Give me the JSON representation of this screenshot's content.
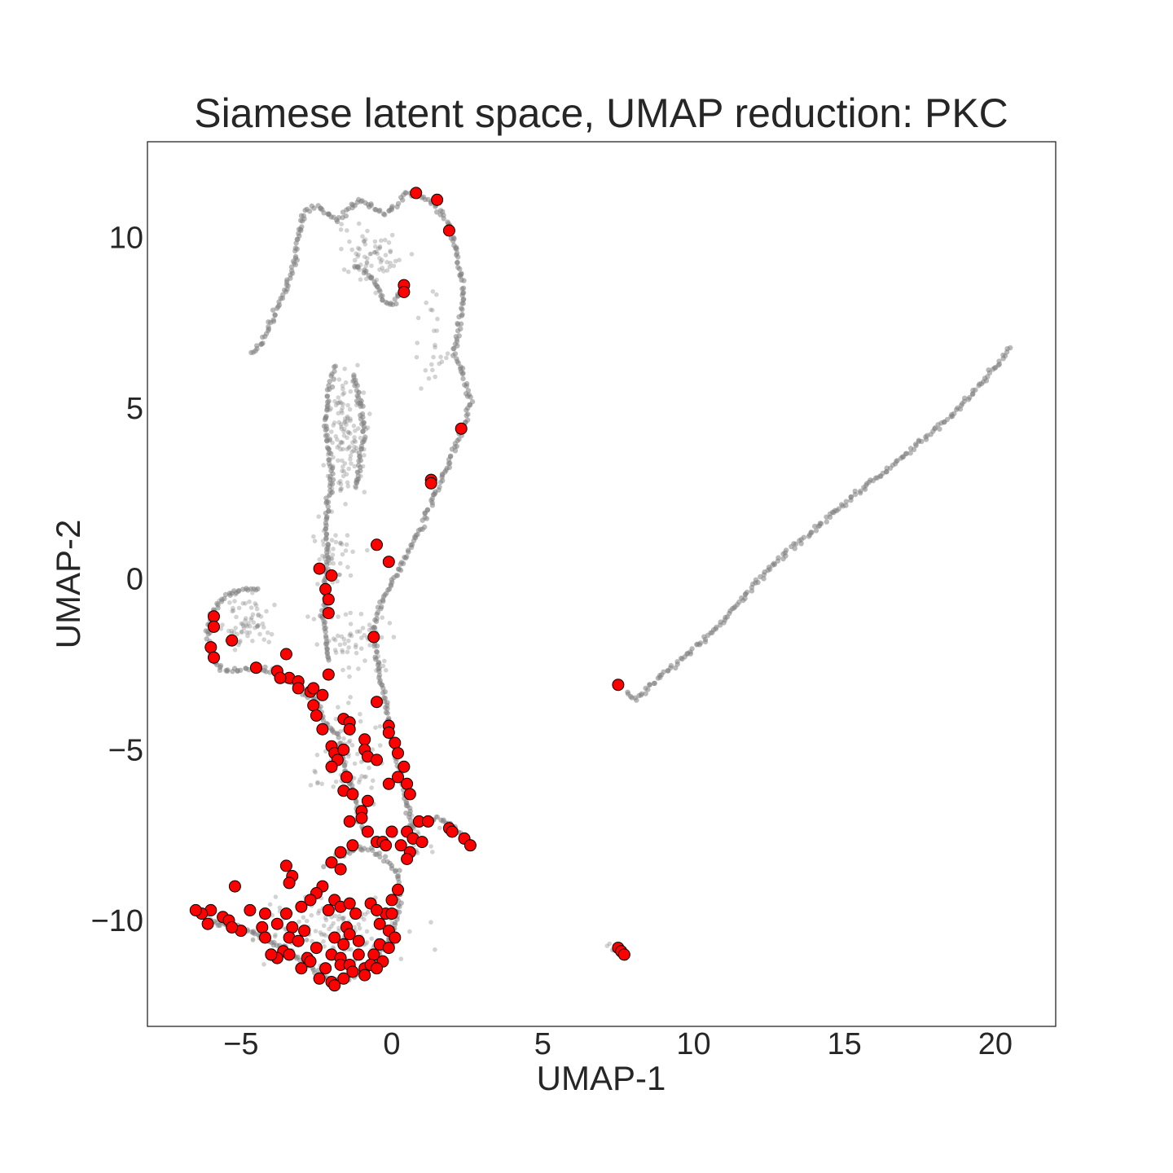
{
  "chart_data": {
    "type": "scatter",
    "title": "Siamese latent space, UMAP reduction: PKC",
    "xlabel": "UMAP-1",
    "ylabel": "UMAP-2",
    "xlim": [
      -8.1,
      22.0
    ],
    "ylim": [
      -13.1,
      12.8
    ],
    "grid": false,
    "legend": "none",
    "xticks": [
      -5,
      0,
      5,
      10,
      15,
      20
    ],
    "xtick_labels": [
      "−5",
      "0",
      "5",
      "10",
      "15",
      "20"
    ],
    "yticks": [
      -10,
      -5,
      0,
      5,
      10
    ],
    "ytick_labels": [
      "−10",
      "−5",
      "0",
      "5",
      "10"
    ],
    "colors": {
      "background_points": "#808080",
      "highlight_fill": "#ff0000",
      "highlight_edge": "#000000"
    },
    "background_curves": [
      [
        [
          -4.7,
          6.6
        ],
        [
          -4.3,
          6.9
        ],
        [
          -4.0,
          7.5
        ],
        [
          -3.6,
          8.3
        ],
        [
          -3.3,
          9.1
        ],
        [
          -3.1,
          9.8
        ],
        [
          -3.0,
          10.5
        ],
        [
          -2.8,
          10.8
        ],
        [
          -2.4,
          10.9
        ],
        [
          -2.1,
          10.6
        ],
        [
          -1.8,
          10.5
        ],
        [
          -1.4,
          10.9
        ],
        [
          -1.0,
          11.1
        ],
        [
          -0.6,
          10.9
        ],
        [
          -0.3,
          10.7
        ],
        [
          0.1,
          10.9
        ],
        [
          0.5,
          11.3
        ],
        [
          0.9,
          11.2
        ],
        [
          1.4,
          11.0
        ],
        [
          1.8,
          10.5
        ],
        [
          2.1,
          9.8
        ],
        [
          2.3,
          9.0
        ],
        [
          2.4,
          8.2
        ],
        [
          2.2,
          7.4
        ],
        [
          2.1,
          6.6
        ],
        [
          2.4,
          5.9
        ],
        [
          2.6,
          5.2
        ],
        [
          2.4,
          4.5
        ],
        [
          2.1,
          3.9
        ],
        [
          1.7,
          3.0
        ],
        [
          1.3,
          2.2
        ],
        [
          0.8,
          1.2
        ],
        [
          0.3,
          0.4
        ],
        [
          -0.2,
          -0.4
        ],
        [
          -0.5,
          -1.0
        ],
        [
          -0.6,
          -1.7
        ],
        [
          -0.5,
          -2.4
        ],
        [
          -0.3,
          -3.3
        ],
        [
          -0.1,
          -4.2
        ],
        [
          0.1,
          -5.0
        ],
        [
          0.3,
          -5.8
        ],
        [
          0.5,
          -6.6
        ],
        [
          0.7,
          -7.3
        ]
      ],
      [
        [
          7.8,
          -3.3
        ],
        [
          8.1,
          -3.5
        ],
        [
          8.6,
          -3.1
        ],
        [
          9.1,
          -2.7
        ],
        [
          9.7,
          -2.3
        ],
        [
          10.3,
          -1.8
        ],
        [
          10.9,
          -1.3
        ],
        [
          11.5,
          -0.7
        ],
        [
          12.0,
          -0.2
        ],
        [
          12.5,
          0.3
        ],
        [
          13.1,
          0.8
        ],
        [
          13.8,
          1.3
        ],
        [
          14.6,
          1.9
        ],
        [
          15.4,
          2.5
        ],
        [
          16.3,
          3.1
        ],
        [
          17.1,
          3.7
        ],
        [
          17.9,
          4.3
        ],
        [
          18.6,
          4.8
        ],
        [
          19.2,
          5.4
        ],
        [
          19.8,
          6.0
        ],
        [
          20.3,
          6.5
        ],
        [
          20.5,
          6.8
        ]
      ],
      [
        [
          -1.9,
          6.2
        ],
        [
          -2.1,
          5.4
        ],
        [
          -2.2,
          4.6
        ],
        [
          -2.1,
          3.9
        ],
        [
          -2.0,
          3.1
        ],
        [
          -2.1,
          2.4
        ],
        [
          -2.2,
          1.5
        ],
        [
          -2.1,
          0.7
        ],
        [
          -2.2,
          -0.2
        ],
        [
          -2.3,
          -1.0
        ],
        [
          -2.2,
          -1.8
        ],
        [
          -2.1,
          -2.5
        ]
      ],
      [
        [
          -1.3,
          6.0
        ],
        [
          -1.0,
          5.1
        ],
        [
          -0.9,
          4.2
        ],
        [
          -1.1,
          3.4
        ],
        [
          -1.2,
          2.6
        ]
      ],
      [
        [
          -4.4,
          -0.3
        ],
        [
          -5.0,
          -0.3
        ],
        [
          -5.5,
          -0.5
        ],
        [
          -5.9,
          -0.9
        ],
        [
          -6.1,
          -1.4
        ],
        [
          -6.0,
          -2.1
        ],
        [
          -5.7,
          -2.6
        ],
        [
          -5.2,
          -2.7
        ],
        [
          -4.5,
          -2.6
        ],
        [
          -3.8,
          -2.7
        ],
        [
          -3.1,
          -3.2
        ],
        [
          -2.5,
          -3.6
        ],
        [
          -2.2,
          -4.2
        ],
        [
          -1.8,
          -4.6
        ],
        [
          -1.6,
          -5.3
        ],
        [
          -1.4,
          -5.9
        ],
        [
          -1.2,
          -6.5
        ],
        [
          -1.1,
          -7.1
        ],
        [
          -0.9,
          -7.4
        ]
      ],
      [
        [
          -6.4,
          -9.8
        ],
        [
          -5.8,
          -10.1
        ],
        [
          -5.0,
          -10.2
        ],
        [
          -4.3,
          -10.5
        ],
        [
          -3.6,
          -10.8
        ],
        [
          -2.9,
          -11.2
        ],
        [
          -2.3,
          -11.6
        ],
        [
          -1.8,
          -11.8
        ],
        [
          -1.2,
          -11.6
        ],
        [
          -0.6,
          -11.2
        ],
        [
          -0.2,
          -10.7
        ],
        [
          0.1,
          -10.2
        ],
        [
          0.2,
          -9.7
        ],
        [
          0.3,
          -9.2
        ],
        [
          0.2,
          -8.6
        ],
        [
          -0.2,
          -8.2
        ],
        [
          -0.7,
          -7.9
        ],
        [
          -1.2,
          -7.9
        ],
        [
          -1.8,
          -8.1
        ],
        [
          -2.3,
          -8.4
        ]
      ],
      [
        [
          0.5,
          -7.3
        ],
        [
          1.0,
          -7.1
        ],
        [
          1.5,
          -7.0
        ],
        [
          2.0,
          -7.2
        ],
        [
          2.4,
          -7.6
        ]
      ],
      [
        [
          -1.2,
          9.2
        ],
        [
          -0.8,
          8.9
        ],
        [
          -0.5,
          8.6
        ],
        [
          -0.3,
          8.2
        ],
        [
          -0.1,
          8.0
        ],
        [
          0.1,
          8.1
        ],
        [
          0.3,
          8.4
        ]
      ]
    ],
    "background_scatter_regions": [
      {
        "center": [
          -0.7,
          9.5
        ],
        "spread": [
          1.0,
          0.9
        ],
        "count": 70
      },
      {
        "center": [
          -1.5,
          4.2
        ],
        "spread": [
          0.7,
          1.9
        ],
        "count": 130
      },
      {
        "center": [
          -2.0,
          0.8
        ],
        "spread": [
          0.9,
          1.0
        ],
        "count": 40
      },
      {
        "center": [
          -4.8,
          -1.2
        ],
        "spread": [
          0.9,
          0.8
        ],
        "count": 70
      },
      {
        "center": [
          -1.3,
          -1.8
        ],
        "spread": [
          1.4,
          1.1
        ],
        "count": 60
      },
      {
        "center": [
          -1.4,
          -5.2
        ],
        "spread": [
          1.1,
          1.4
        ],
        "count": 70
      },
      {
        "center": [
          -2.0,
          -10.3
        ],
        "spread": [
          2.3,
          0.9
        ],
        "count": 130
      },
      {
        "center": [
          1.4,
          7.0
        ],
        "spread": [
          0.5,
          1.5
        ],
        "count": 25
      },
      {
        "center": [
          0.6,
          -7.6
        ],
        "spread": [
          1.1,
          0.5
        ],
        "count": 30
      },
      {
        "center": [
          7.4,
          -10.8
        ],
        "spread": [
          0.2,
          0.2
        ],
        "count": 6
      }
    ],
    "highlight_points": [
      [
        0.8,
        11.3
      ],
      [
        1.5,
        11.1
      ],
      [
        1.9,
        10.2
      ],
      [
        0.4,
        8.6
      ],
      [
        0.4,
        8.4
      ],
      [
        2.3,
        4.4
      ],
      [
        1.3,
        2.9
      ],
      [
        1.3,
        2.8
      ],
      [
        -0.5,
        1.0
      ],
      [
        -0.1,
        0.5
      ],
      [
        -2.4,
        0.3
      ],
      [
        -2.0,
        0.1
      ],
      [
        -2.2,
        -0.3
      ],
      [
        -2.1,
        -0.6
      ],
      [
        -2.1,
        -1.0
      ],
      [
        -0.6,
        -1.7
      ],
      [
        -5.9,
        -1.1
      ],
      [
        -5.9,
        -1.4
      ],
      [
        -5.3,
        -1.8
      ],
      [
        -6.0,
        -2.0
      ],
      [
        -5.9,
        -2.3
      ],
      [
        -3.5,
        -2.2
      ],
      [
        -4.5,
        -2.6
      ],
      [
        -3.8,
        -2.7
      ],
      [
        -3.4,
        -2.9
      ],
      [
        -3.1,
        -3.0
      ],
      [
        -2.1,
        -2.8
      ],
      [
        -3.1,
        -3.2
      ],
      [
        -2.7,
        -3.3
      ],
      [
        -2.6,
        -3.2
      ],
      [
        -2.3,
        -3.4
      ],
      [
        -0.5,
        -3.6
      ],
      [
        -2.6,
        -3.7
      ],
      [
        -2.5,
        -4.0
      ],
      [
        -1.6,
        -4.1
      ],
      [
        -1.4,
        -4.2
      ],
      [
        -0.1,
        -4.3
      ],
      [
        -0.1,
        -4.5
      ],
      [
        -2.3,
        -4.4
      ],
      [
        -1.4,
        -4.4
      ],
      [
        -0.9,
        -4.7
      ],
      [
        -2.0,
        -4.9
      ],
      [
        -1.9,
        -5.1
      ],
      [
        -1.6,
        -5.0
      ],
      [
        -0.9,
        -5.0
      ],
      [
        -0.8,
        -5.2
      ],
      [
        0.1,
        -4.8
      ],
      [
        0.2,
        -5.1
      ],
      [
        -1.8,
        -5.3
      ],
      [
        -2.0,
        -5.5
      ],
      [
        -0.5,
        -5.3
      ],
      [
        0.4,
        -5.5
      ],
      [
        -1.5,
        -5.8
      ],
      [
        0.2,
        -5.8
      ],
      [
        -0.1,
        -6.0
      ],
      [
        0.5,
        -6.0
      ],
      [
        -1.6,
        -6.2
      ],
      [
        -1.3,
        -6.3
      ],
      [
        -0.8,
        -6.5
      ],
      [
        0.6,
        -6.3
      ],
      [
        -1.0,
        -6.8
      ],
      [
        -1.0,
        -7.0
      ],
      [
        -0.8,
        -7.4
      ],
      [
        -1.4,
        -7.1
      ],
      [
        0.0,
        -7.4
      ],
      [
        0.5,
        -7.4
      ],
      [
        0.9,
        -7.1
      ],
      [
        1.2,
        -7.1
      ],
      [
        1.9,
        -7.3
      ],
      [
        2.0,
        -7.4
      ],
      [
        0.7,
        -7.6
      ],
      [
        1.0,
        -7.7
      ],
      [
        -0.5,
        -7.7
      ],
      [
        -0.3,
        -7.7
      ],
      [
        -1.3,
        -7.8
      ],
      [
        -1.7,
        -8.0
      ],
      [
        0.3,
        -7.8
      ],
      [
        0.6,
        -8.0
      ],
      [
        0.5,
        -8.2
      ],
      [
        2.4,
        -7.6
      ],
      [
        2.6,
        -7.8
      ],
      [
        -0.2,
        -7.8
      ],
      [
        -2.0,
        -8.3
      ],
      [
        -1.7,
        -8.5
      ],
      [
        -3.5,
        -8.4
      ],
      [
        -3.3,
        -8.7
      ],
      [
        -3.4,
        -8.9
      ],
      [
        -5.2,
        -9.0
      ],
      [
        -2.3,
        -9.0
      ],
      [
        -2.5,
        -9.2
      ],
      [
        -2.7,
        -9.4
      ],
      [
        -1.9,
        -9.4
      ],
      [
        -1.7,
        -9.6
      ],
      [
        -1.4,
        -9.5
      ],
      [
        -0.7,
        -9.5
      ],
      [
        0.0,
        -9.4
      ],
      [
        0.2,
        -9.1
      ],
      [
        -0.2,
        -9.8
      ],
      [
        -0.5,
        -9.7
      ],
      [
        -1.2,
        -9.8
      ],
      [
        -2.1,
        -9.7
      ],
      [
        -3.0,
        -9.6
      ],
      [
        -3.5,
        -9.8
      ],
      [
        -4.2,
        -9.8
      ],
      [
        -4.7,
        -9.7
      ],
      [
        -6.0,
        -9.7
      ],
      [
        -6.3,
        -9.8
      ],
      [
        -6.5,
        -9.7
      ],
      [
        -5.6,
        -9.9
      ],
      [
        -5.4,
        -10.0
      ],
      [
        -6.1,
        -10.1
      ],
      [
        -5.0,
        -10.3
      ],
      [
        -5.3,
        -10.2
      ],
      [
        -4.3,
        -10.2
      ],
      [
        -3.8,
        -10.1
      ],
      [
        -3.3,
        -10.2
      ],
      [
        -2.9,
        -10.3
      ],
      [
        -1.5,
        -10.2
      ],
      [
        -1.4,
        -10.4
      ],
      [
        -0.4,
        -10.1
      ],
      [
        -0.1,
        -10.3
      ],
      [
        0.0,
        -9.8
      ],
      [
        0.1,
        -10.5
      ],
      [
        -4.2,
        -10.5
      ],
      [
        -3.4,
        -10.5
      ],
      [
        -3.1,
        -10.6
      ],
      [
        -2.5,
        -10.8
      ],
      [
        -1.9,
        -10.5
      ],
      [
        -1.6,
        -10.7
      ],
      [
        -1.1,
        -10.6
      ],
      [
        -0.4,
        -10.7
      ],
      [
        -0.1,
        -10.8
      ],
      [
        -4.0,
        -11.0
      ],
      [
        -3.6,
        -10.9
      ],
      [
        -3.8,
        -11.1
      ],
      [
        -3.4,
        -11.0
      ],
      [
        -2.8,
        -11.1
      ],
      [
        -2.0,
        -11.0
      ],
      [
        -1.7,
        -11.1
      ],
      [
        -1.1,
        -11.0
      ],
      [
        -0.6,
        -11.0
      ],
      [
        -0.3,
        -11.2
      ],
      [
        -4.0,
        -11.0
      ],
      [
        -3.0,
        -11.4
      ],
      [
        -2.7,
        -11.2
      ],
      [
        -2.2,
        -11.4
      ],
      [
        -1.7,
        -11.3
      ],
      [
        -1.4,
        -11.3
      ],
      [
        -0.9,
        -11.4
      ],
      [
        -0.7,
        -11.3
      ],
      [
        -0.5,
        -11.4
      ],
      [
        -0.9,
        -11.6
      ],
      [
        -1.3,
        -11.5
      ],
      [
        -1.6,
        -11.7
      ],
      [
        -2.0,
        -11.8
      ],
      [
        -1.9,
        -11.9
      ],
      [
        -2.4,
        -11.7
      ],
      [
        -3.7,
        -2.9
      ],
      [
        7.5,
        -3.1
      ],
      [
        7.5,
        -10.8
      ],
      [
        7.6,
        -10.9
      ],
      [
        7.7,
        -11.0
      ]
    ]
  }
}
